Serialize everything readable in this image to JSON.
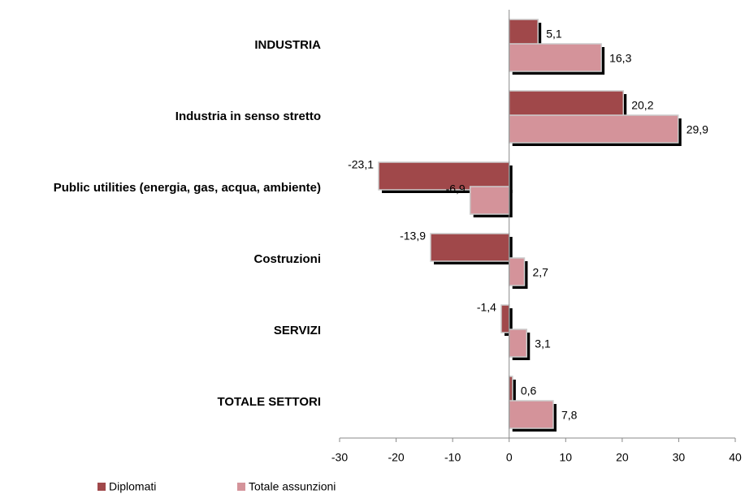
{
  "chart_data": {
    "type": "bar",
    "orientation": "horizontal",
    "categories": [
      "INDUSTRIA",
      "Industria in senso stretto",
      "Public utilities (energia, gas, acqua, ambiente)",
      "Costruzioni",
      "SERVIZI",
      "TOTALE SETTORI"
    ],
    "series": [
      {
        "name": "Diplomati",
        "color": "#a0484a",
        "values": [
          5.1,
          20.2,
          -23.1,
          -13.9,
          -1.4,
          0.6
        ],
        "value_labels": [
          "5,1",
          "20,2",
          "-23,1",
          "-13,9",
          "-1,4",
          "0,6"
        ]
      },
      {
        "name": "Totale assunzioni",
        "color": "#d4939a",
        "values": [
          16.3,
          29.9,
          -6.9,
          2.7,
          3.1,
          7.8
        ],
        "value_labels": [
          "16,3",
          "29,9",
          "-6,9",
          "2,7",
          "3,1",
          "7,8"
        ]
      }
    ],
    "xlim": [
      -30,
      40
    ],
    "xticks": [
      -30,
      -20,
      -10,
      0,
      10,
      20,
      30,
      40
    ],
    "legend": "bottom-left"
  }
}
